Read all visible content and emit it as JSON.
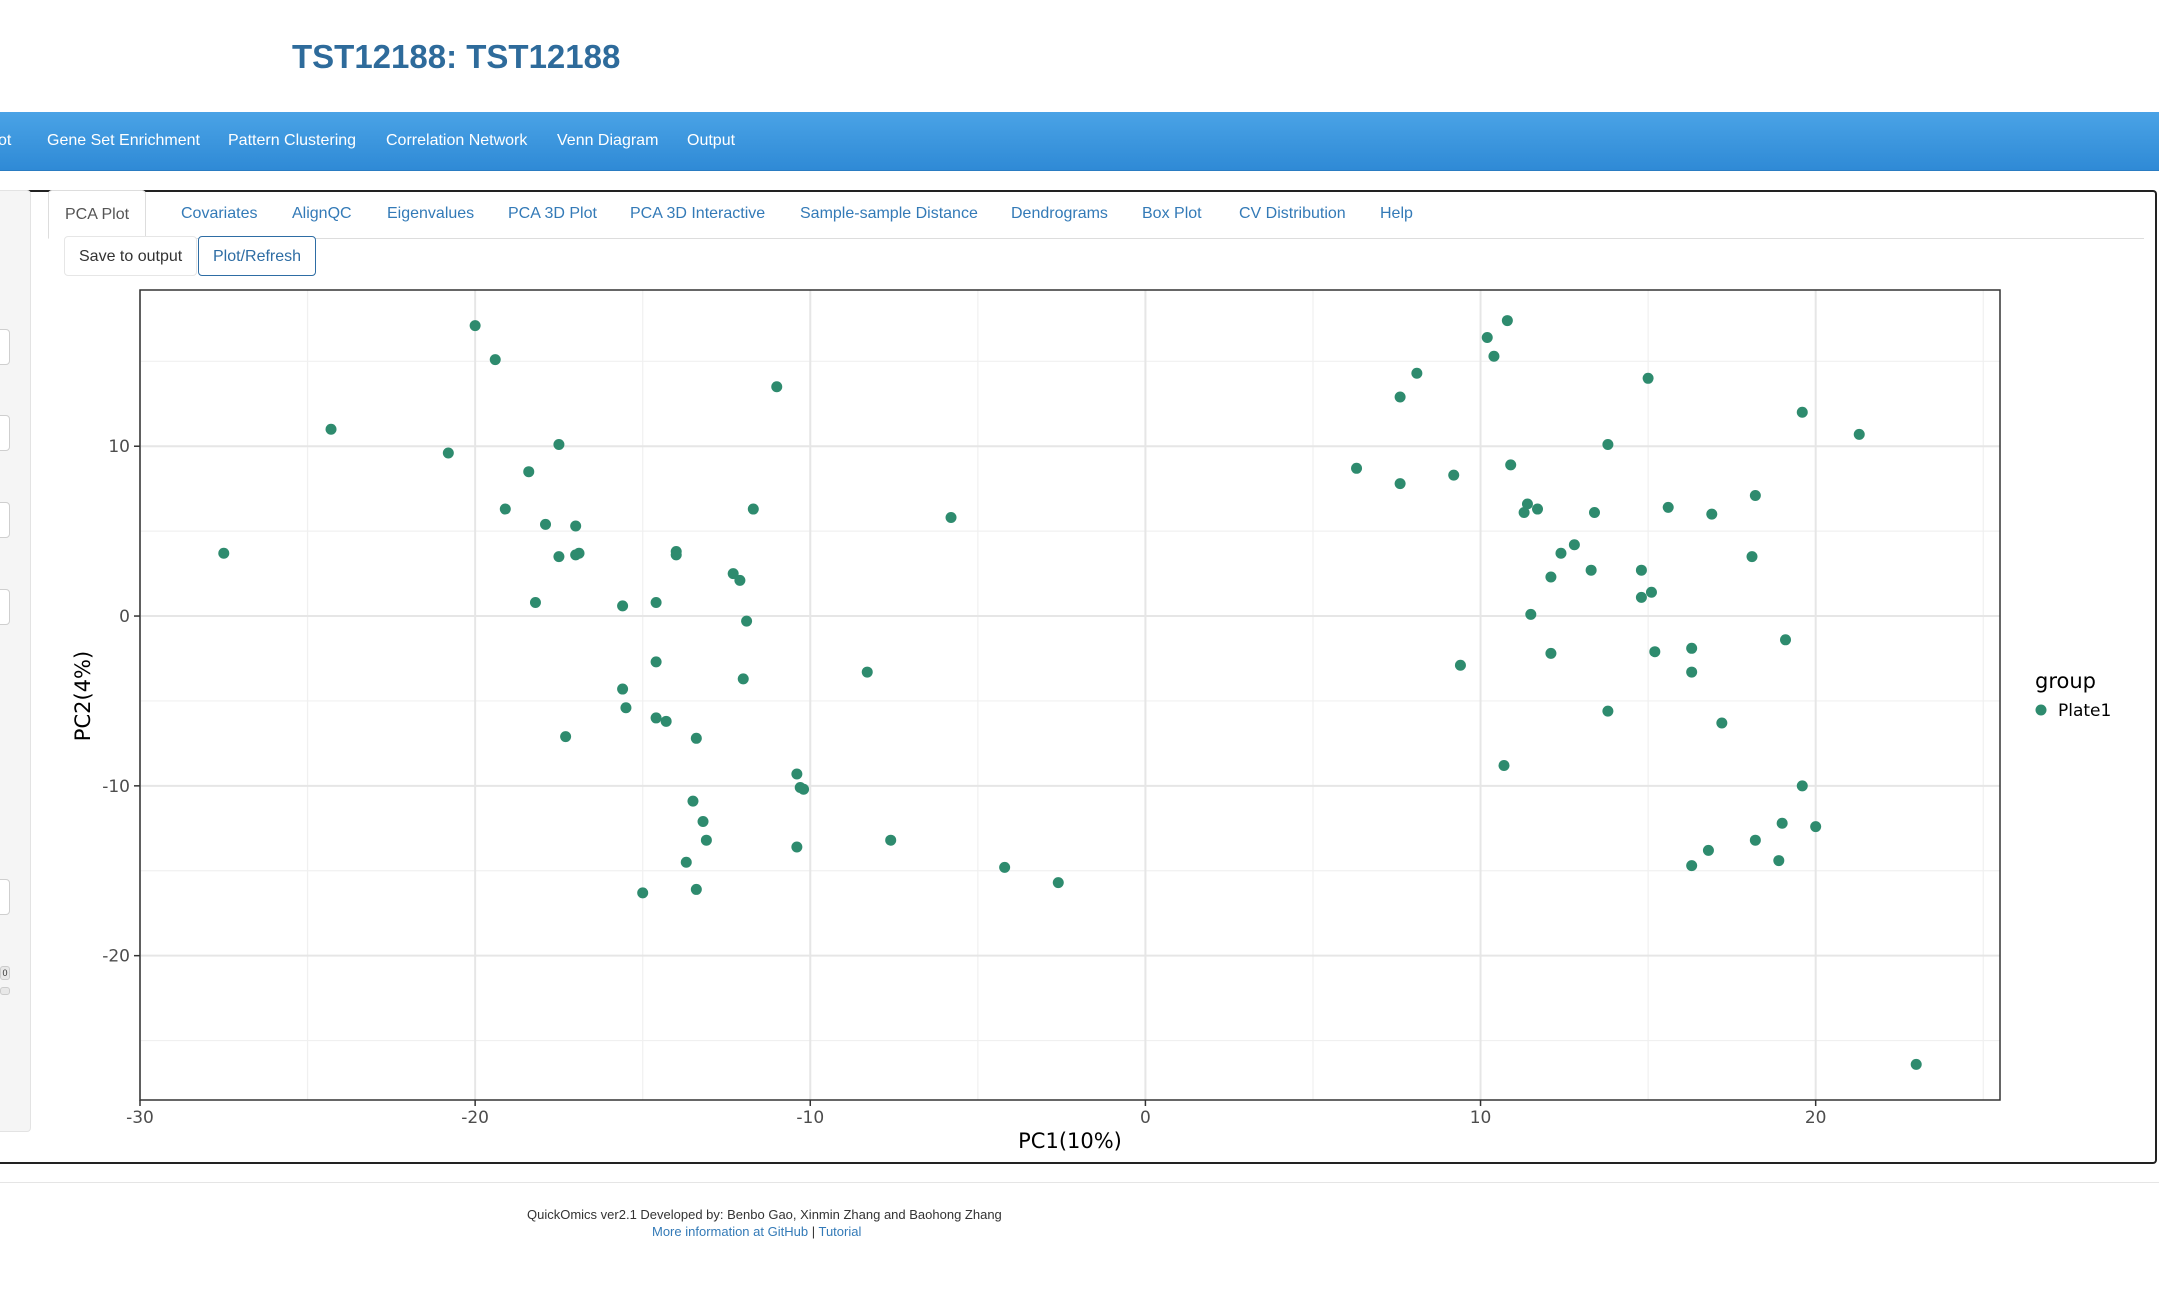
{
  "app": {
    "title": "TST12188: TST12188"
  },
  "navbar": {
    "items": [
      "ot",
      "Gene Set Enrichment",
      "Pattern Clustering",
      "Correlation Network",
      "Venn Diagram",
      "Output"
    ]
  },
  "tabs": {
    "items": [
      "PCA Plot",
      "Covariates",
      "AlignQC",
      "Eigenvalues",
      "PCA 3D Plot",
      "PCA 3D Interactive",
      "Sample-sample Distance",
      "Dendrograms",
      "Box Plot",
      "CV Distribution",
      "Help"
    ],
    "active": "PCA Plot"
  },
  "toolbar": {
    "save_label": "Save to output",
    "refresh_label": "Plot/Refresh"
  },
  "sidebar": {
    "slider_value": "0"
  },
  "chart_data": {
    "type": "scatter",
    "xlabel": "PC1(10%)",
    "ylabel": "PC2(4%)",
    "xlim": [
      -30,
      25.5
    ],
    "ylim": [
      -28.5,
      19.2
    ],
    "xticks": [
      -30,
      -20,
      -10,
      0,
      10,
      20
    ],
    "yticks": [
      -20,
      -10,
      0,
      10
    ],
    "grid": true,
    "legend": {
      "title": "group",
      "position": "right"
    },
    "series": [
      {
        "name": "Plate1",
        "color": "#2e8b6e",
        "points": [
          [
            -27.5,
            3.7
          ],
          [
            -24.3,
            11.0
          ],
          [
            -20.8,
            9.6
          ],
          [
            -20.0,
            17.1
          ],
          [
            -19.4,
            15.1
          ],
          [
            -19.1,
            6.3
          ],
          [
            -18.4,
            8.5
          ],
          [
            -18.2,
            0.8
          ],
          [
            -17.9,
            5.4
          ],
          [
            -17.5,
            10.1
          ],
          [
            -17.5,
            3.5
          ],
          [
            -17.3,
            -7.1
          ],
          [
            -17.0,
            5.3
          ],
          [
            -17.0,
            3.6
          ],
          [
            -16.9,
            3.7
          ],
          [
            -15.6,
            0.6
          ],
          [
            -15.6,
            -4.3
          ],
          [
            -15.5,
            -5.4
          ],
          [
            -15.0,
            -16.3
          ],
          [
            -14.6,
            -6.0
          ],
          [
            -14.6,
            0.8
          ],
          [
            -14.6,
            -2.7
          ],
          [
            -14.3,
            -6.2
          ],
          [
            -14.0,
            3.8
          ],
          [
            -14.0,
            3.6
          ],
          [
            -13.7,
            -14.5
          ],
          [
            -13.5,
            -10.9
          ],
          [
            -13.4,
            -16.1
          ],
          [
            -13.4,
            -7.2
          ],
          [
            -13.2,
            -12.1
          ],
          [
            -13.1,
            -13.2
          ],
          [
            -12.3,
            2.5
          ],
          [
            -12.1,
            2.1
          ],
          [
            -11.9,
            -0.3
          ],
          [
            -12.0,
            -3.7
          ],
          [
            -11.7,
            6.3
          ],
          [
            -11.0,
            13.5
          ],
          [
            -10.4,
            -9.3
          ],
          [
            -10.3,
            -10.1
          ],
          [
            -10.2,
            -10.2
          ],
          [
            -10.4,
            -13.6
          ],
          [
            -8.3,
            -3.3
          ],
          [
            -7.6,
            -13.2
          ],
          [
            -5.8,
            5.8
          ],
          [
            -4.2,
            -14.8
          ],
          [
            -2.6,
            -15.7
          ],
          [
            6.3,
            8.7
          ],
          [
            7.6,
            7.8
          ],
          [
            7.6,
            12.9
          ],
          [
            8.1,
            14.3
          ],
          [
            9.2,
            8.3
          ],
          [
            9.4,
            -2.9
          ],
          [
            10.2,
            16.4
          ],
          [
            10.4,
            15.3
          ],
          [
            10.7,
            -8.8
          ],
          [
            10.8,
            17.4
          ],
          [
            10.9,
            8.9
          ],
          [
            11.3,
            6.1
          ],
          [
            11.4,
            6.6
          ],
          [
            11.5,
            0.1
          ],
          [
            11.7,
            6.3
          ],
          [
            12.1,
            -2.2
          ],
          [
            12.1,
            2.3
          ],
          [
            12.4,
            3.7
          ],
          [
            12.8,
            4.2
          ],
          [
            13.3,
            2.7
          ],
          [
            13.4,
            6.1
          ],
          [
            13.8,
            10.1
          ],
          [
            13.8,
            -5.6
          ],
          [
            14.8,
            2.7
          ],
          [
            14.8,
            1.1
          ],
          [
            15.0,
            14.0
          ],
          [
            15.1,
            1.4
          ],
          [
            15.2,
            -2.1
          ],
          [
            15.6,
            6.4
          ],
          [
            16.3,
            -1.9
          ],
          [
            16.3,
            -3.3
          ],
          [
            16.3,
            -14.7
          ],
          [
            16.8,
            -13.8
          ],
          [
            16.9,
            6.0
          ],
          [
            17.2,
            -6.3
          ],
          [
            18.2,
            7.1
          ],
          [
            18.1,
            3.5
          ],
          [
            18.2,
            -13.2
          ],
          [
            18.9,
            -14.4
          ],
          [
            19.1,
            -1.4
          ],
          [
            19.0,
            -12.2
          ],
          [
            19.6,
            12.0
          ],
          [
            19.6,
            -10.0
          ],
          [
            20.0,
            -12.4
          ],
          [
            21.3,
            10.7
          ],
          [
            23.0,
            -26.4
          ]
        ]
      }
    ]
  },
  "footer": {
    "credit": "QuickOmics ver2.1 Developed by: Benbo Gao, Xinmin Zhang and Baohong Zhang",
    "link_github": "More information at GitHub",
    "separator": "|",
    "link_tutorial": "Tutorial"
  }
}
